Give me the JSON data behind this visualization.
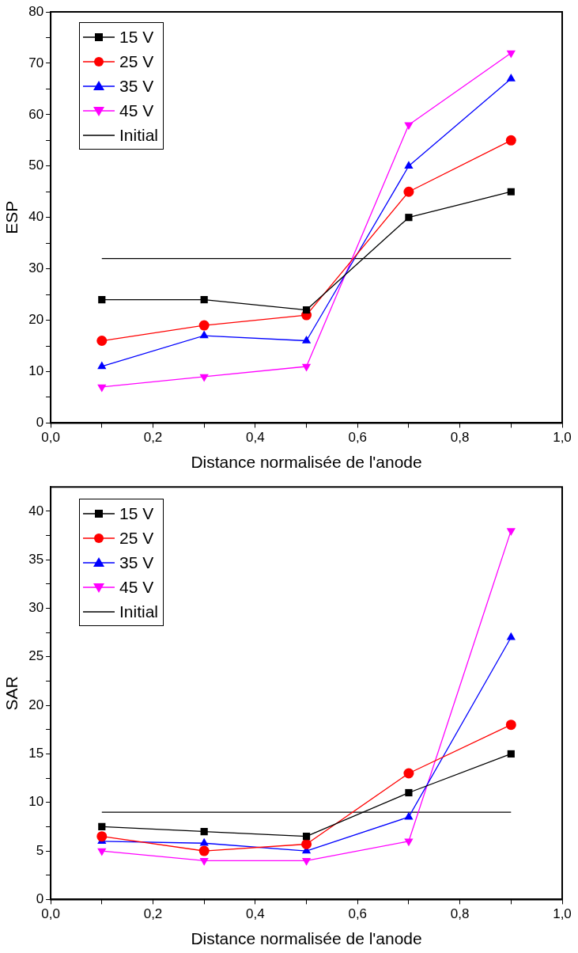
{
  "chart_data": [
    {
      "type": "line",
      "xlabel": "Distance normalisée de l'anode",
      "ylabel": "ESP",
      "x": [
        0.1,
        0.3,
        0.5,
        0.7,
        0.9
      ],
      "series": [
        {
          "name": "15 V",
          "color": "#000000",
          "marker": "square",
          "values": [
            24,
            24,
            22,
            40,
            45
          ]
        },
        {
          "name": "25 V",
          "color": "#ff0000",
          "marker": "circle",
          "values": [
            16,
            19,
            21,
            45,
            55
          ]
        },
        {
          "name": "35 V",
          "color": "#0000ff",
          "marker": "triangle",
          "values": [
            11,
            17,
            16,
            50,
            67
          ]
        },
        {
          "name": "45 V",
          "color": "#ff00ff",
          "marker": "triangle-down",
          "values": [
            7,
            9,
            11,
            58,
            72
          ]
        },
        {
          "name": "Initial",
          "color": "#000000",
          "marker": "none",
          "values": [
            32,
            32,
            32,
            32,
            32
          ]
        }
      ],
      "xlim": [
        0,
        1
      ],
      "xticks": [
        {
          "value": 0,
          "label": "0,0"
        },
        {
          "value": 0.1,
          "label": null
        },
        {
          "value": 0.2,
          "label": "0,2"
        },
        {
          "value": 0.3,
          "label": null
        },
        {
          "value": 0.4,
          "label": "0,4"
        },
        {
          "value": 0.5,
          "label": null
        },
        {
          "value": 0.6,
          "label": "0,6"
        },
        {
          "value": 0.7,
          "label": null
        },
        {
          "value": 0.8,
          "label": "0,8"
        },
        {
          "value": 0.9,
          "label": null
        },
        {
          "value": 1,
          "label": "1,0"
        }
      ],
      "ylim": [
        0,
        80
      ],
      "yticks": [
        0,
        {
          "value": 5,
          "label": null
        },
        10,
        {
          "value": 15,
          "label": null
        },
        20,
        {
          "value": 25,
          "label": null
        },
        30,
        {
          "value": 35,
          "label": null
        },
        40,
        {
          "value": 45,
          "label": null
        },
        50,
        {
          "value": 55,
          "label": null
        },
        60,
        {
          "value": 65,
          "label": null
        },
        70,
        {
          "value": 75,
          "label": null
        },
        80
      ],
      "grid": false,
      "legend": "top left"
    },
    {
      "type": "line",
      "xlabel": "Distance normalisée de l'anode",
      "ylabel": "SAR",
      "x": [
        0.1,
        0.3,
        0.5,
        0.7,
        0.9
      ],
      "series": [
        {
          "name": "15 V",
          "color": "#000000",
          "marker": "square",
          "values": [
            7.5,
            7,
            6.5,
            11,
            15
          ]
        },
        {
          "name": "25 V",
          "color": "#ff0000",
          "marker": "circle",
          "values": [
            6.5,
            5,
            5.7,
            13,
            18
          ]
        },
        {
          "name": "35 V",
          "color": "#0000ff",
          "marker": "triangle",
          "values": [
            6,
            5.8,
            5,
            8.5,
            27
          ]
        },
        {
          "name": "45 V",
          "color": "#ff00ff",
          "marker": "triangle-down",
          "values": [
            5,
            4,
            4,
            6,
            38
          ]
        },
        {
          "name": "Initial",
          "color": "#000000",
          "marker": "none",
          "values": [
            9,
            9,
            9,
            9,
            9
          ]
        }
      ],
      "xlim": [
        0,
        1
      ],
      "xticks": [
        {
          "value": 0,
          "label": "0,0"
        },
        {
          "value": 0.1,
          "label": null
        },
        {
          "value": 0.2,
          "label": "0,2"
        },
        {
          "value": 0.3,
          "label": null
        },
        {
          "value": 0.4,
          "label": "0,4"
        },
        {
          "value": 0.5,
          "label": null
        },
        {
          "value": 0.6,
          "label": "0,6"
        },
        {
          "value": 0.7,
          "label": null
        },
        {
          "value": 0.8,
          "label": "0,8"
        },
        {
          "value": 0.9,
          "label": null
        },
        {
          "value": 1,
          "label": "1,0"
        }
      ],
      "ylim": [
        0,
        42.5
      ],
      "yticks": [
        0,
        {
          "value": 2.5,
          "label": null
        },
        5,
        {
          "value": 7.5,
          "label": null
        },
        10,
        {
          "value": 12.5,
          "label": null
        },
        15,
        {
          "value": 17.5,
          "label": null
        },
        20,
        {
          "value": 22.5,
          "label": null
        },
        25,
        {
          "value": 27.5,
          "label": null
        },
        30,
        {
          "value": 32.5,
          "label": null
        },
        35,
        {
          "value": 37.5,
          "label": null
        },
        40
      ],
      "grid": false,
      "legend": "top left"
    }
  ]
}
